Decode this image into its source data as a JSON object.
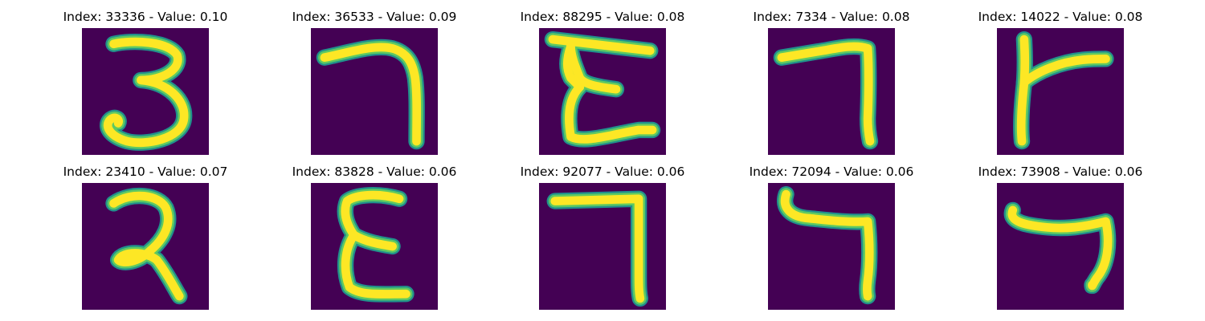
{
  "colors": {
    "background": "#440154",
    "stroke_edge": "#21918c",
    "stroke_mid": "#5ec962",
    "stroke_core": "#fde725"
  },
  "panels": [
    {
      "title": "Index: 33336 - Value: 0.10",
      "index": 33336,
      "value": 0.1,
      "glyph": "three-shape"
    },
    {
      "title": "Index: 36533 - Value: 0.09",
      "index": 36533,
      "value": 0.09,
      "glyph": "hook-seven"
    },
    {
      "title": "Index: 88295 - Value: 0.08",
      "index": 88295,
      "value": 0.08,
      "glyph": "epsilon-shape"
    },
    {
      "title": "Index: 7334 - Value: 0.08",
      "index": 7334,
      "value": 0.08,
      "glyph": "angle-seven"
    },
    {
      "title": "Index: 14022 - Value: 0.08",
      "index": 14022,
      "value": 0.08,
      "glyph": "t-shape"
    },
    {
      "title": "Index: 23410 - Value: 0.07",
      "index": 23410,
      "value": 0.07,
      "glyph": "two-shape"
    },
    {
      "title": "Index: 83828 - Value: 0.06",
      "index": 83828,
      "value": 0.06,
      "glyph": "epsilon-shape"
    },
    {
      "title": "Index: 92077 - Value: 0.06",
      "index": 92077,
      "value": 0.06,
      "glyph": "angle-seven"
    },
    {
      "title": "Index: 72094 - Value: 0.06",
      "index": 72094,
      "value": 0.06,
      "glyph": "angle-seven"
    },
    {
      "title": "Index: 73908 - Value: 0.06",
      "index": 73908,
      "value": 0.06,
      "glyph": "angle-seven"
    }
  ]
}
